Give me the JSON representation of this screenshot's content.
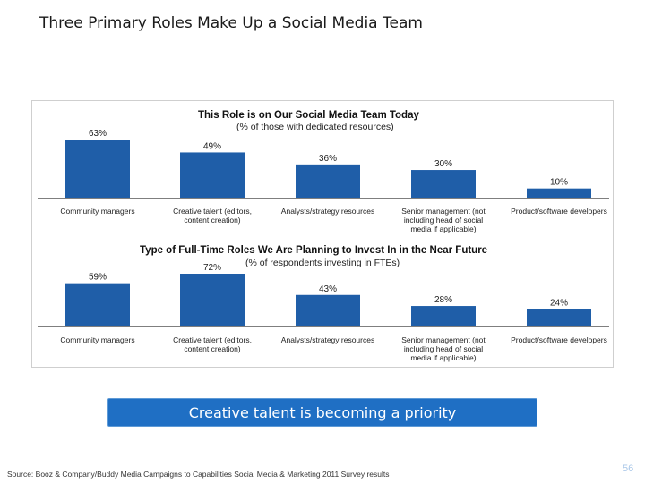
{
  "slide": {
    "title": "Three Primary Roles Make Up a Social Media Team",
    "callout": "Creative talent is becoming a priority",
    "source": "Source: Booz & Company/Buddy Media Campaigns to Capabilities Social Media & Marketing 2011 Survey results",
    "page_number": "56"
  },
  "colors": {
    "bar": "#1f5ea8",
    "callout_bg": "#1f6fc4",
    "page_number": "#a9c7e8"
  },
  "chart_data": [
    {
      "type": "bar",
      "title": "This Role is on Our Social Media Team Today",
      "subtitle": "(% of those with dedicated resources)",
      "categories": [
        [
          "Community managers"
        ],
        [
          "Creative talent (editors,",
          "content creation)"
        ],
        [
          "Analysts/strategy resources"
        ],
        [
          "Senior management (not",
          "including head of social",
          "media if applicable)"
        ],
        [
          "Product/software developers"
        ]
      ],
      "values": [
        63,
        49,
        36,
        30,
        10
      ],
      "value_labels": [
        "63%",
        "49%",
        "36%",
        "30%",
        "10%"
      ],
      "ylim": [
        0,
        63
      ],
      "grid": false,
      "legend": "none"
    },
    {
      "type": "bar",
      "title": "Type of Full-Time Roles We Are Planning to Invest In in the Near Future",
      "subtitle": "(% of respondents investing in FTEs)",
      "categories": [
        [
          "Community managers"
        ],
        [
          "Creative talent (editors,",
          "content creation)"
        ],
        [
          "Analysts/strategy resources"
        ],
        [
          "Senior management (not",
          "including head of social",
          "media if applicable)"
        ],
        [
          "Product/software developers"
        ]
      ],
      "values": [
        59,
        72,
        43,
        28,
        24
      ],
      "value_labels": [
        "59%",
        "72%",
        "43%",
        "28%",
        "24%"
      ],
      "ylim": [
        0,
        72
      ],
      "grid": false,
      "legend": "none"
    }
  ]
}
